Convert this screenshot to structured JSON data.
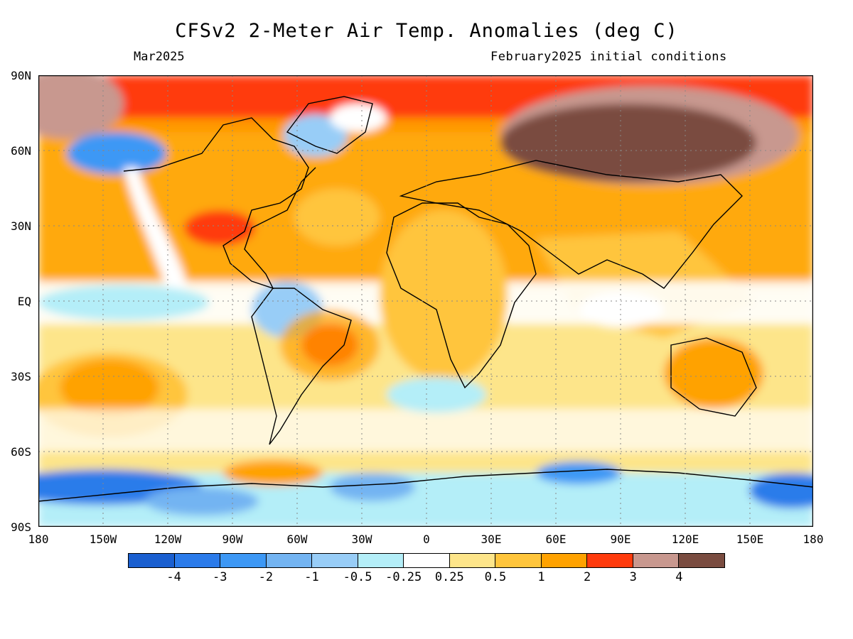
{
  "title": "CFSv2 2-Meter Air Temp. Anomalies (deg C)",
  "valid_month": "Mar2025",
  "init_conditions": "February2025 initial conditions",
  "lat_labels": [
    "90N",
    "60N",
    "30N",
    "EQ",
    "30S",
    "60S",
    "90S"
  ],
  "lon_labels": [
    "180",
    "150W",
    "120W",
    "90W",
    "60W",
    "30W",
    "0",
    "30E",
    "60E",
    "90E",
    "120E",
    "150E",
    "180"
  ],
  "colorbar": {
    "colors": [
      "#1a5fd0",
      "#2b7bea",
      "#3d98f5",
      "#73b4f2",
      "#98cdf7",
      "#b4eef8",
      "#ffffff",
      "#fde58a",
      "#ffc53c",
      "#ffa200",
      "#ff3b0d",
      "#c8988f",
      "#7a4c40"
    ],
    "labels": [
      "-4",
      "-3",
      "-2",
      "-1",
      "-0.5",
      "-0.25",
      "0.25",
      "0.5",
      "1",
      "2",
      "3",
      "4"
    ]
  }
}
